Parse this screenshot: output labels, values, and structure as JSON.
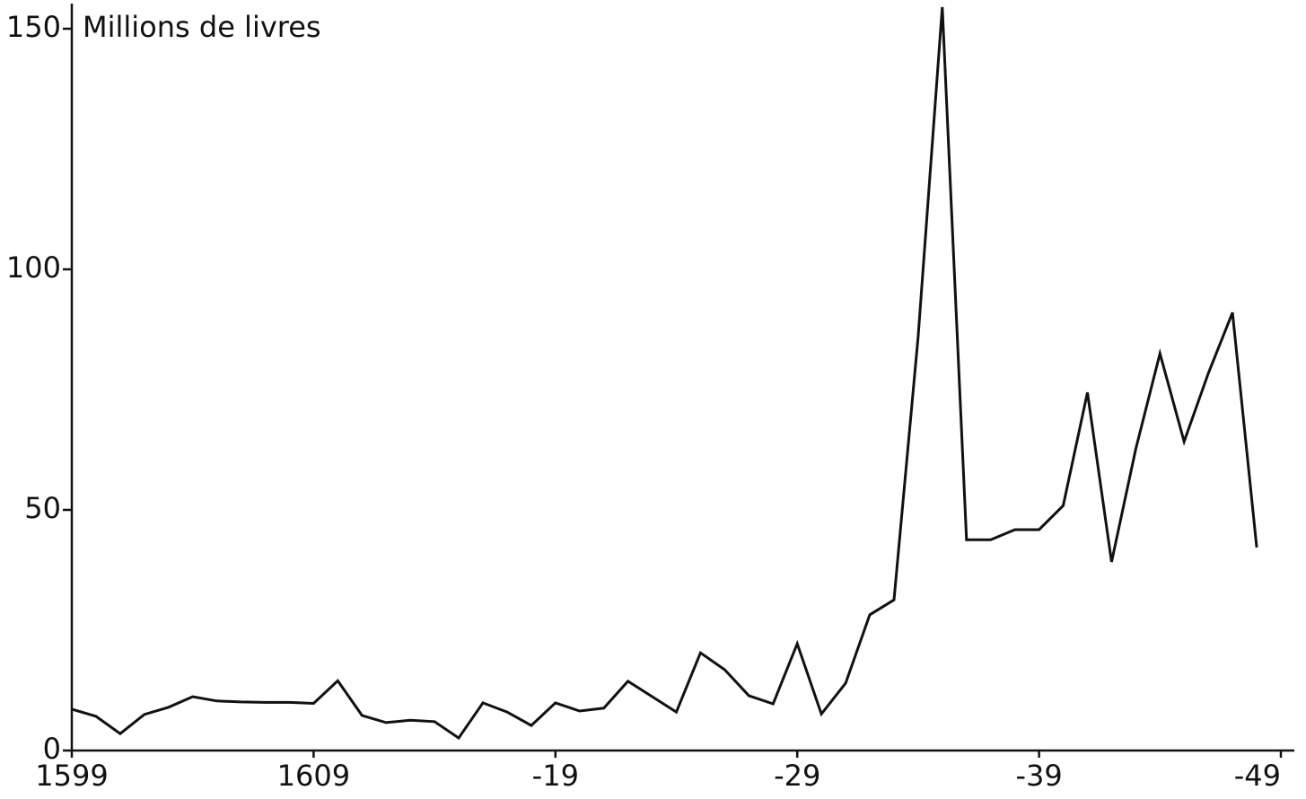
{
  "chart_data": {
    "type": "line",
    "y_label": "Millions de livres",
    "x": [
      1599,
      1600,
      1601,
      1602,
      1603,
      1604,
      1605,
      1606,
      1607,
      1608,
      1609,
      1610,
      1611,
      1612,
      1613,
      1614,
      1615,
      1616,
      1617,
      1618,
      1619,
      1620,
      1621,
      1622,
      1623,
      1624,
      1625,
      1626,
      1627,
      1628,
      1629,
      1630,
      1631,
      1632,
      1633,
      1634,
      1635,
      1636,
      1637,
      1638,
      1639,
      1640,
      1641,
      1642,
      1643,
      1644,
      1645,
      1646,
      1647,
      1648
    ],
    "values": [
      8.6,
      7.1,
      3.5,
      7.5,
      9,
      11.2,
      10.3,
      10.1,
      10,
      10,
      9.8,
      14.5,
      7.3,
      5.8,
      6.3,
      6,
      2.6,
      9.9,
      8,
      5.2,
      9.9,
      8.2,
      8.8,
      14.4,
      11.2,
      8,
      20.3,
      16.8,
      11.4,
      9.7,
      22.2,
      7.6,
      14,
      28.2,
      31.3,
      86,
      154.5,
      43.8,
      43.8,
      45.9,
      45.9,
      50.9,
      74.4,
      39.2,
      62.7,
      82.5,
      64.2,
      78.4,
      91,
      42.2
    ],
    "color": "#111111",
    "xlim": [
      1599,
      1649
    ],
    "xticks": [
      1599,
      1609,
      {
        "value": 1619,
        "label": "-19"
      },
      {
        "value": 1629,
        "label": "-29"
      },
      {
        "value": 1639,
        "label": "-39"
      },
      {
        "value": 1649,
        "label": "-49"
      }
    ],
    "ylim": [
      0,
      155
    ],
    "yticks": [
      0,
      50,
      100,
      150
    ],
    "grid": false
  }
}
